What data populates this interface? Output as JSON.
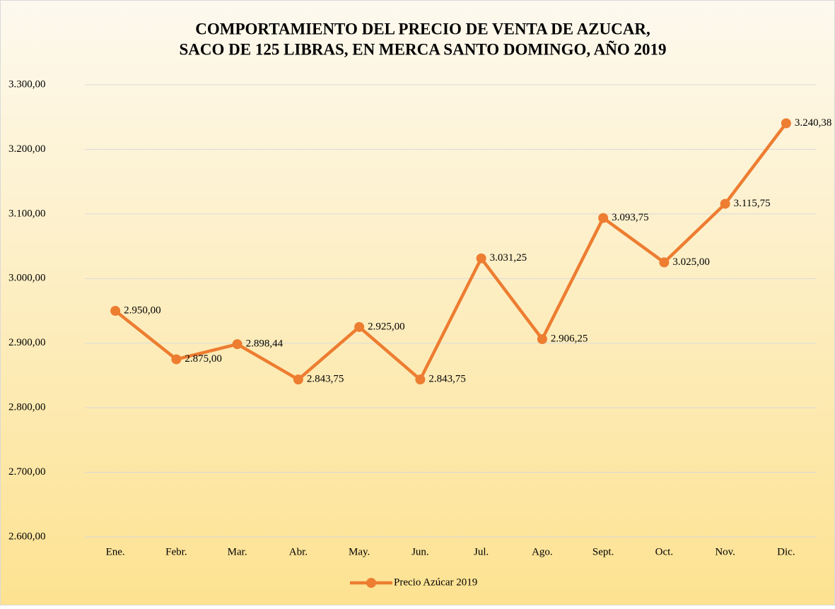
{
  "chart_data": {
    "type": "line",
    "title": [
      "COMPORTAMIENTO DEL PRECIO DE VENTA DE AZUCAR,",
      "SACO DE 125 LIBRAS, EN MERCA SANTO DOMINGO, AÑO 2019"
    ],
    "categories": [
      "Ene.",
      "Febr.",
      "Mar.",
      "Abr.",
      "May.",
      "Jun.",
      "Jul.",
      "Ago.",
      "Sept.",
      "Oct.",
      "Nov.",
      "Dic."
    ],
    "series": [
      {
        "name": "Precio Azúcar 2019",
        "color": "#ed7d31",
        "values": [
          2950,
          2875,
          2898.44,
          2843.75,
          2925,
          2843.75,
          3031.25,
          2906.25,
          3093.75,
          3025,
          3115.75,
          3240.38
        ],
        "value_labels": [
          "2.950,00",
          "2.875,00",
          "2.898,44",
          "2.843,75",
          "2.925,00",
          "2.843,75",
          "3.031,25",
          "2.906,25",
          "3.093,75",
          "3.025,00",
          "3.115,75",
          "3.240,38"
        ]
      }
    ],
    "ylim": [
      2600,
      3300
    ],
    "yticks": [
      {
        "value": 2600,
        "label": "2.600,00"
      },
      {
        "value": 2700,
        "label": "2.700,00"
      },
      {
        "value": 2800,
        "label": "2.800,00"
      },
      {
        "value": 2900,
        "label": "2.900,00"
      },
      {
        "value": 3000,
        "label": "3.000,00"
      },
      {
        "value": 3100,
        "label": "3.100,00"
      },
      {
        "value": 3200,
        "label": "3.200,00"
      },
      {
        "value": 3300,
        "label": "3.300,00"
      }
    ],
    "grid": true,
    "legend": "bottom"
  }
}
